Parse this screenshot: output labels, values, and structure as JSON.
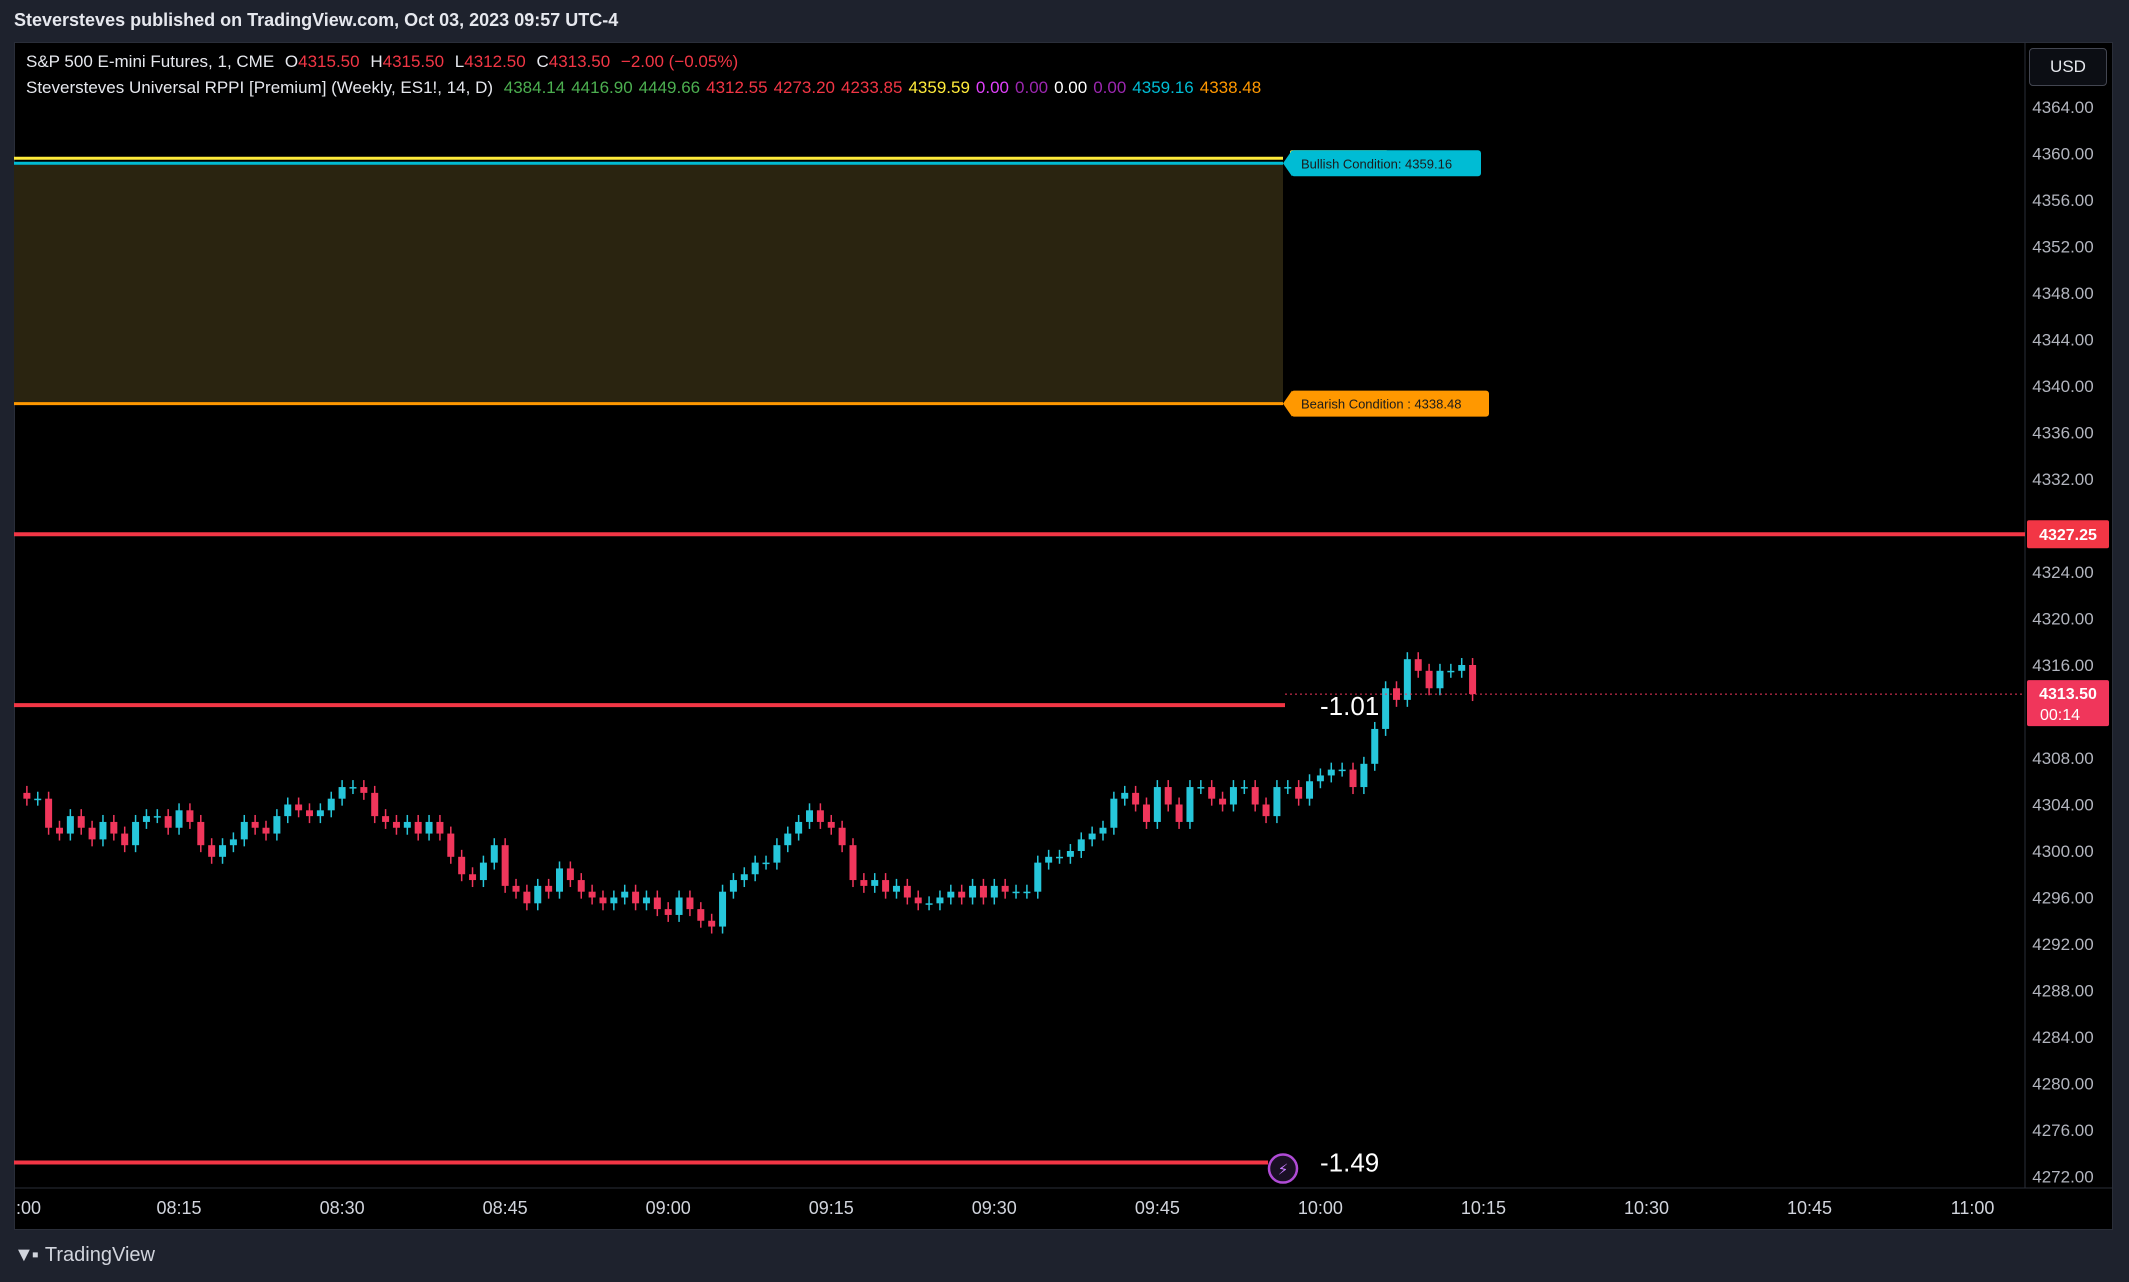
{
  "header": {
    "publish_line": "Steversteves published on TradingView.com, Oct 03, 2023 09:57 UTC-4"
  },
  "legend": {
    "symbol_line": "S&P 500 E-mini Futures, 1, CME",
    "o_label": "O",
    "o_value": "4315.50",
    "h_label": "H",
    "h_value": "4315.50",
    "l_label": "L",
    "l_value": "4312.50",
    "c_label": "C",
    "c_value": "4313.50",
    "change": "−2.00 (−0.05%)",
    "indicator_name": "Steversteves Universal RPPI [Premium] (Weekly, ES1!, 14, D)",
    "indicator_values": [
      {
        "text": "4384.14",
        "color": "#4caf50"
      },
      {
        "text": "4416.90",
        "color": "#4caf50"
      },
      {
        "text": "4449.66",
        "color": "#4caf50"
      },
      {
        "text": "4312.55",
        "color": "#f23645"
      },
      {
        "text": "4273.20",
        "color": "#f23645"
      },
      {
        "text": "4233.85",
        "color": "#f23645"
      },
      {
        "text": "4359.59",
        "color": "#ffeb3b"
      },
      {
        "text": "0.00",
        "color": "#e040fb"
      },
      {
        "text": "0.00",
        "color": "#9c27b0"
      },
      {
        "text": "0.00",
        "color": "#ffffff"
      },
      {
        "text": "0.00",
        "color": "#9c27b0"
      },
      {
        "text": "4359.16",
        "color": "#00bcd4"
      },
      {
        "text": "4338.48",
        "color": "#ff9800"
      }
    ]
  },
  "currency_button": "USD",
  "colors": {
    "up": "#26c6da",
    "down": "#f0365b",
    "hline": "#f23645",
    "bull": "#00bcd4",
    "bear": "#ff9800",
    "zone": "#2a2410"
  },
  "chart_data": {
    "type": "candlestick",
    "title": "",
    "ylim": [
      4270,
      4366
    ],
    "y_ticks": [
      4364,
      4360,
      4356,
      4352,
      4348,
      4344,
      4340,
      4336,
      4332,
      4324,
      4320,
      4316,
      4308,
      4304,
      4300,
      4296,
      4292,
      4288,
      4284,
      4280,
      4276,
      4272
    ],
    "y_tick_labels": [
      "4364.00",
      "4360.00",
      "4356.00",
      "4352.00",
      "4348.00",
      "4344.00",
      "4340.00",
      "4336.00",
      "4332.00",
      "4324.00",
      "4320.00",
      "4316.00",
      "4308.00",
      "4304.00",
      "4300.00",
      "4296.00",
      "4292.00",
      "4288.00",
      "4284.00",
      "4280.00",
      "4276.00",
      "4272.00"
    ],
    "x_tick_labels": [
      ":00",
      "08:15",
      "08:30",
      "08:45",
      "09:00",
      "09:15",
      "09:30",
      "09:45",
      "10:00",
      "10:15",
      "10:30",
      "10:45",
      "11:00"
    ],
    "x_tick_minutes_after_0800": [
      0,
      15,
      30,
      45,
      60,
      75,
      90,
      105,
      120,
      135,
      150,
      165,
      180
    ],
    "closes": [
      4304.5,
      4304.5,
      4302.0,
      4301.5,
      4303.0,
      4302.0,
      4301.0,
      4302.5,
      4301.5,
      4300.5,
      4302.5,
      4303.0,
      4303.0,
      4302.0,
      4303.5,
      4302.5,
      4300.5,
      4299.5,
      4300.5,
      4301.0,
      4302.5,
      4302.0,
      4301.5,
      4303.0,
      4304.0,
      4303.5,
      4303.0,
      4303.5,
      4304.5,
      4305.5,
      4305.5,
      4305.0,
      4303.0,
      4302.5,
      4302.0,
      4302.5,
      4301.5,
      4302.5,
      4301.5,
      4299.5,
      4298.0,
      4297.5,
      4299.0,
      4300.5,
      4297.0,
      4296.5,
      4295.5,
      4297.0,
      4296.5,
      4298.5,
      4297.5,
      4296.5,
      4296.0,
      4295.5,
      4296.0,
      4296.5,
      4295.5,
      4296.0,
      4295.0,
      4294.5,
      4296.0,
      4295.0,
      4294.0,
      4293.5,
      4296.5,
      4297.5,
      4298.0,
      4299.0,
      4299.0,
      4300.5,
      4301.5,
      4302.5,
      4303.5,
      4302.5,
      4302.0,
      4300.5,
      4297.5,
      4297.0,
      4297.5,
      4296.5,
      4297.0,
      4296.0,
      4295.5,
      4295.5,
      4296.0,
      4296.5,
      4296.0,
      4297.0,
      4296.0,
      4297.0,
      4296.5,
      4296.5,
      4296.5,
      4299.0,
      4299.5,
      4299.5,
      4300.0,
      4301.0,
      4301.5,
      4302.0,
      4304.5,
      4305.0,
      4304.0,
      4302.5,
      4305.5,
      4304.0,
      4302.5,
      4305.5,
      4305.5,
      4304.5,
      4304.0,
      4305.5,
      4305.5,
      4304.0,
      4303.0,
      4305.5,
      4305.5,
      4304.5,
      4306.0,
      4306.5,
      4307.0,
      4307.0,
      4305.5,
      4307.5,
      4310.5,
      4314.0,
      4313.0,
      4316.5,
      4315.5,
      4314.0,
      4315.5,
      4315.5,
      4316.0,
      4313.5
    ],
    "horizontal_lines": [
      {
        "price": 4327.25,
        "label": "4327.25"
      },
      {
        "price": 4312.55,
        "value_label": "-1.01"
      },
      {
        "price": 4273.2,
        "value_label": "-1.49"
      }
    ],
    "zone": {
      "top": 4359.16,
      "bottom": 4338.48
    },
    "zone_labels": [
      {
        "text": "Bullish Condition: 4359.16",
        "price": 4359.16
      },
      {
        "text": "Bearish Condition : 4338.48",
        "price": 4338.48
      }
    ],
    "last_price": {
      "value": "4313.50",
      "countdown": "00:14"
    }
  },
  "footer": {
    "brand": "TradingView"
  }
}
